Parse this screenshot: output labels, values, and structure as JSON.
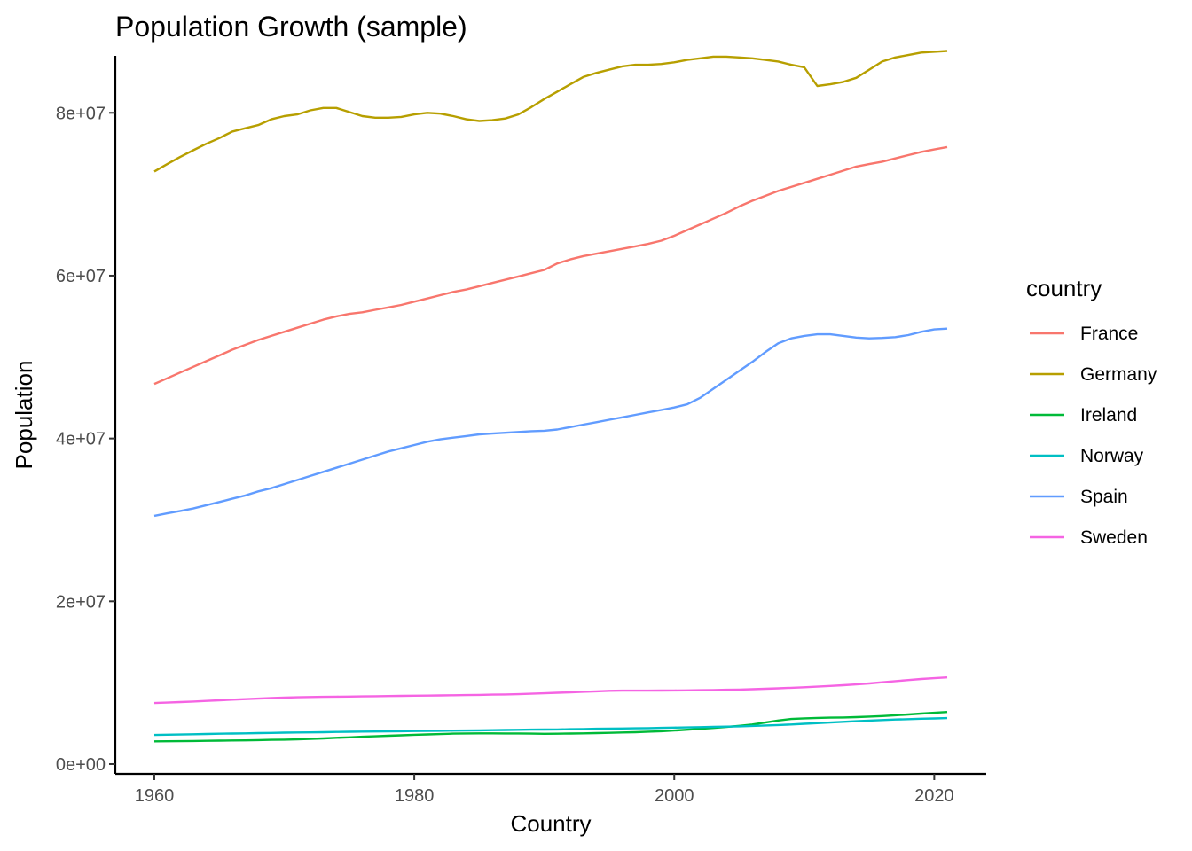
{
  "chart_data": {
    "type": "line",
    "title": "Population Growth (sample)",
    "xlabel": "Country",
    "ylabel": "Population",
    "xlim": [
      1957,
      2024
    ],
    "ylim": [
      -1200000,
      87000000
    ],
    "x_ticks": [
      1960,
      1980,
      2000,
      2020
    ],
    "x_tick_labels": [
      "1960",
      "1980",
      "2000",
      "2020"
    ],
    "y_ticks": [
      0,
      20000000,
      40000000,
      60000000,
      80000000
    ],
    "y_tick_labels": [
      "0e+00",
      "2e+07",
      "4e+07",
      "6e+07",
      "8e+07"
    ],
    "grid": false,
    "legend": {
      "title": "country",
      "position": "right"
    },
    "x": [
      1960,
      1961,
      1962,
      1963,
      1964,
      1965,
      1966,
      1967,
      1968,
      1969,
      1970,
      1971,
      1972,
      1973,
      1974,
      1975,
      1976,
      1977,
      1978,
      1979,
      1980,
      1981,
      1982,
      1983,
      1984,
      1985,
      1986,
      1987,
      1988,
      1989,
      1990,
      1991,
      1992,
      1993,
      1994,
      1995,
      1996,
      1997,
      1998,
      1999,
      2000,
      2001,
      2002,
      2003,
      2004,
      2005,
      2006,
      2007,
      2008,
      2009,
      2010,
      2011,
      2012,
      2013,
      2014,
      2015,
      2016,
      2017,
      2018,
      2019,
      2020,
      2021
    ],
    "series": [
      {
        "name": "France",
        "color": "#F8766D",
        "values": [
          46700000,
          47400000,
          48100000,
          48800000,
          49500000,
          50200000,
          50900000,
          51500000,
          52100000,
          52600000,
          53100000,
          53600000,
          54100000,
          54600000,
          55000000,
          55300000,
          55500000,
          55800000,
          56100000,
          56400000,
          56800000,
          57200000,
          57600000,
          58000000,
          58300000,
          58700000,
          59100000,
          59500000,
          59900000,
          60300000,
          60700000,
          61500000,
          62000000,
          62400000,
          62700000,
          63000000,
          63300000,
          63600000,
          63900000,
          64300000,
          64900000,
          65600000,
          66300000,
          67000000,
          67700000,
          68500000,
          69200000,
          69800000,
          70400000,
          70900000,
          71400000,
          71900000,
          72400000,
          72900000,
          73400000,
          73700000,
          74000000,
          74400000,
          74800000,
          75200000,
          75500000,
          75800000
        ]
      },
      {
        "name": "Germany",
        "color": "#B79F00",
        "values": [
          72800000,
          73700000,
          74600000,
          75400000,
          76200000,
          76900000,
          77700000,
          78100000,
          78500000,
          79200000,
          79600000,
          79800000,
          80300000,
          80600000,
          80600000,
          80100000,
          79600000,
          79400000,
          79400000,
          79500000,
          79800000,
          80000000,
          79900000,
          79600000,
          79200000,
          79000000,
          79100000,
          79300000,
          79800000,
          80700000,
          81700000,
          82600000,
          83500000,
          84400000,
          84900000,
          85300000,
          85700000,
          85900000,
          85900000,
          86000000,
          86200000,
          86500000,
          86700000,
          86900000,
          86900000,
          86800000,
          86700000,
          86500000,
          86300000,
          85900000,
          85600000,
          83300000,
          83500000,
          83800000,
          84300000,
          85300000,
          86300000,
          86800000,
          87100000,
          87400000,
          87500000,
          87600000
        ]
      },
      {
        "name": "Ireland",
        "color": "#00BA38",
        "values": [
          2800000,
          2810000,
          2820000,
          2840000,
          2860000,
          2880000,
          2900000,
          2920000,
          2950000,
          2980000,
          3000000,
          3040000,
          3100000,
          3160000,
          3230000,
          3290000,
          3360000,
          3420000,
          3480000,
          3540000,
          3600000,
          3650000,
          3690000,
          3740000,
          3760000,
          3780000,
          3780000,
          3770000,
          3760000,
          3740000,
          3720000,
          3730000,
          3750000,
          3780000,
          3810000,
          3840000,
          3880000,
          3920000,
          3980000,
          4040000,
          4120000,
          4220000,
          4330000,
          4440000,
          4560000,
          4700000,
          4870000,
          5100000,
          5350000,
          5540000,
          5620000,
          5670000,
          5700000,
          5730000,
          5770000,
          5830000,
          5900000,
          6000000,
          6100000,
          6200000,
          6300000,
          6400000
        ]
      },
      {
        "name": "Norway",
        "color": "#00BFC4",
        "values": [
          3580000,
          3610000,
          3640000,
          3670000,
          3700000,
          3730000,
          3750000,
          3780000,
          3810000,
          3830000,
          3860000,
          3880000,
          3900000,
          3920000,
          3950000,
          3970000,
          3990000,
          4000000,
          4020000,
          4040000,
          4060000,
          4070000,
          4090000,
          4110000,
          4130000,
          4150000,
          4170000,
          4190000,
          4210000,
          4230000,
          4240000,
          4260000,
          4290000,
          4310000,
          4340000,
          4360000,
          4380000,
          4400000,
          4420000,
          4450000,
          4480000,
          4510000,
          4540000,
          4570000,
          4600000,
          4640000,
          4690000,
          4740000,
          4800000,
          4870000,
          4950000,
          5030000,
          5110000,
          5190000,
          5270000,
          5340000,
          5410000,
          5470000,
          5520000,
          5570000,
          5610000,
          5650000
        ]
      },
      {
        "name": "Spain",
        "color": "#619CFF",
        "values": [
          30500000,
          30800000,
          31100000,
          31400000,
          31800000,
          32200000,
          32600000,
          33000000,
          33500000,
          33900000,
          34400000,
          34900000,
          35400000,
          35900000,
          36400000,
          36900000,
          37400000,
          37900000,
          38400000,
          38800000,
          39200000,
          39600000,
          39900000,
          40100000,
          40300000,
          40500000,
          40600000,
          40700000,
          40800000,
          40900000,
          40950000,
          41100000,
          41400000,
          41700000,
          42000000,
          42300000,
          42600000,
          42900000,
          43200000,
          43500000,
          43800000,
          44200000,
          45000000,
          46100000,
          47200000,
          48300000,
          49400000,
          50600000,
          51700000,
          52300000,
          52600000,
          52800000,
          52800000,
          52600000,
          52400000,
          52300000,
          52350000,
          52450000,
          52700000,
          53100000,
          53400000,
          53500000
        ]
      },
      {
        "name": "Sweden",
        "color": "#F564E3",
        "values": [
          7500000,
          7560000,
          7620000,
          7690000,
          7760000,
          7840000,
          7910000,
          7980000,
          8050000,
          8110000,
          8160000,
          8210000,
          8240000,
          8260000,
          8280000,
          8300000,
          8320000,
          8340000,
          8360000,
          8380000,
          8400000,
          8420000,
          8440000,
          8460000,
          8480000,
          8500000,
          8530000,
          8560000,
          8590000,
          8640000,
          8700000,
          8760000,
          8820000,
          8880000,
          8940000,
          9000000,
          9020000,
          9030000,
          9030000,
          9040000,
          9050000,
          9060000,
          9080000,
          9100000,
          9130000,
          9160000,
          9200000,
          9250000,
          9310000,
          9370000,
          9440000,
          9520000,
          9600000,
          9690000,
          9790000,
          9910000,
          10050000,
          10190000,
          10320000,
          10450000,
          10550000,
          10650000
        ]
      }
    ]
  }
}
